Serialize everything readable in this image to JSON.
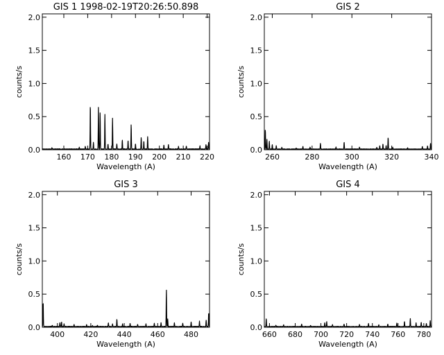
{
  "chart_data": [
    {
      "type": "line",
      "title": "GIS 1 1998-02-19T20:26:50.898",
      "xlabel": "Wavelength (A)",
      "ylabel": "counts/s",
      "xlim": [
        151,
        221
      ],
      "ylim": [
        0,
        2.05
      ],
      "xticks": [
        160,
        170,
        180,
        190,
        200,
        210,
        220
      ],
      "yticks": [
        0.0,
        0.5,
        1.0,
        1.5,
        2.0
      ],
      "ytick_labels": [
        "0.0",
        "0.5",
        "1.0",
        "1.5",
        "2.0"
      ],
      "grid": false,
      "baseline": 0.01,
      "noise": 0.01,
      "x_end": 221,
      "peaks": [
        {
          "x": 155.0,
          "y": 0.02
        },
        {
          "x": 166.5,
          "y": 0.03
        },
        {
          "x": 169.0,
          "y": 0.04
        },
        {
          "x": 171.1,
          "y": 0.68
        },
        {
          "x": 172.4,
          "y": 0.1
        },
        {
          "x": 174.5,
          "y": 0.63
        },
        {
          "x": 175.2,
          "y": 0.55
        },
        {
          "x": 177.2,
          "y": 0.53
        },
        {
          "x": 178.5,
          "y": 0.08
        },
        {
          "x": 180.4,
          "y": 0.47
        },
        {
          "x": 182.2,
          "y": 0.08
        },
        {
          "x": 184.5,
          "y": 0.14
        },
        {
          "x": 186.9,
          "y": 0.13
        },
        {
          "x": 188.2,
          "y": 0.38
        },
        {
          "x": 190.0,
          "y": 0.08
        },
        {
          "x": 192.4,
          "y": 0.18
        },
        {
          "x": 193.5,
          "y": 0.12
        },
        {
          "x": 195.1,
          "y": 0.19
        },
        {
          "x": 201.9,
          "y": 0.06
        },
        {
          "x": 203.8,
          "y": 0.07
        },
        {
          "x": 208.0,
          "y": 0.04
        },
        {
          "x": 211.3,
          "y": 0.05
        },
        {
          "x": 217.0,
          "y": 0.05
        },
        {
          "x": 219.5,
          "y": 0.07
        },
        {
          "x": 220.6,
          "y": 0.1
        }
      ]
    },
    {
      "type": "line",
      "title": "GIS 2",
      "xlabel": "Wavelength (A)",
      "ylabel": "counts/s",
      "xlim": [
        256,
        340
      ],
      "ylim": [
        0,
        2.05
      ],
      "xticks": [
        260,
        280,
        300,
        320,
        340
      ],
      "yticks": [
        0.0,
        0.5,
        1.0,
        1.5,
        2.0
      ],
      "ytick_labels": [
        "0.0",
        "0.5",
        "1.0",
        "1.5",
        "2.0"
      ],
      "grid": false,
      "baseline": 0.01,
      "noise": 0.008,
      "x_end": 340,
      "peaks": [
        {
          "x": 256.5,
          "y": 0.3
        },
        {
          "x": 257.3,
          "y": 0.15
        },
        {
          "x": 258.5,
          "y": 0.12
        },
        {
          "x": 260.0,
          "y": 0.07
        },
        {
          "x": 262.0,
          "y": 0.05
        },
        {
          "x": 264.8,
          "y": 0.03
        },
        {
          "x": 272.0,
          "y": 0.02
        },
        {
          "x": 275.4,
          "y": 0.04
        },
        {
          "x": 279.0,
          "y": 0.03
        },
        {
          "x": 284.2,
          "y": 0.09
        },
        {
          "x": 292.0,
          "y": 0.03
        },
        {
          "x": 296.1,
          "y": 0.11
        },
        {
          "x": 303.8,
          "y": 0.03
        },
        {
          "x": 312.5,
          "y": 0.03
        },
        {
          "x": 314.0,
          "y": 0.05
        },
        {
          "x": 315.6,
          "y": 0.08
        },
        {
          "x": 317.2,
          "y": 0.05
        },
        {
          "x": 318.2,
          "y": 0.18
        },
        {
          "x": 320.5,
          "y": 0.03
        },
        {
          "x": 328.0,
          "y": 0.02
        },
        {
          "x": 335.4,
          "y": 0.04
        },
        {
          "x": 338.0,
          "y": 0.05
        },
        {
          "x": 339.5,
          "y": 0.09
        }
      ]
    },
    {
      "type": "line",
      "title": "GIS 3",
      "xlabel": "Wavelength (A)",
      "ylabel": "counts/s",
      "xlim": [
        391,
        491
      ],
      "ylim": [
        0,
        2.05
      ],
      "xticks": [
        400,
        420,
        440,
        460,
        480
      ],
      "yticks": [
        0.0,
        0.5,
        1.0,
        1.5,
        2.0
      ],
      "ytick_labels": [
        "0.0",
        "0.5",
        "1.0",
        "1.5",
        "2.0"
      ],
      "grid": false,
      "baseline": 0.01,
      "noise": 0.01,
      "x_end": 491,
      "peaks": [
        {
          "x": 391.5,
          "y": 0.38
        },
        {
          "x": 397.0,
          "y": 0.02
        },
        {
          "x": 401.5,
          "y": 0.06
        },
        {
          "x": 402.5,
          "y": 0.07
        },
        {
          "x": 404.0,
          "y": 0.04
        },
        {
          "x": 410.0,
          "y": 0.03
        },
        {
          "x": 417.5,
          "y": 0.03
        },
        {
          "x": 421.0,
          "y": 0.02
        },
        {
          "x": 424.0,
          "y": 0.02
        },
        {
          "x": 430.5,
          "y": 0.06
        },
        {
          "x": 433.0,
          "y": 0.04
        },
        {
          "x": 435.6,
          "y": 0.11
        },
        {
          "x": 439.0,
          "y": 0.04
        },
        {
          "x": 443.5,
          "y": 0.05
        },
        {
          "x": 448.0,
          "y": 0.03
        },
        {
          "x": 453.0,
          "y": 0.04
        },
        {
          "x": 458.0,
          "y": 0.05
        },
        {
          "x": 462.0,
          "y": 0.06
        },
        {
          "x": 465.2,
          "y": 0.56
        },
        {
          "x": 466.0,
          "y": 0.12
        },
        {
          "x": 470.0,
          "y": 0.06
        },
        {
          "x": 475.0,
          "y": 0.05
        },
        {
          "x": 480.0,
          "y": 0.07
        },
        {
          "x": 485.0,
          "y": 0.08
        },
        {
          "x": 489.0,
          "y": 0.1
        },
        {
          "x": 490.5,
          "y": 0.22
        }
      ]
    },
    {
      "type": "line",
      "title": "GIS 4",
      "xlabel": "Wavelength (A)",
      "ylabel": "counts/s",
      "xlim": [
        656,
        786
      ],
      "ylim": [
        0,
        2.05
      ],
      "xticks": [
        660,
        680,
        700,
        720,
        740,
        760,
        780
      ],
      "yticks": [
        0.0,
        0.5,
        1.0,
        1.5,
        2.0
      ],
      "ytick_labels": [
        "0.0",
        "0.5",
        "1.0",
        "1.5",
        "2.0"
      ],
      "grid": false,
      "baseline": 0.01,
      "noise": 0.008,
      "x_end": 786,
      "peaks": [
        {
          "x": 657.5,
          "y": 0.12
        },
        {
          "x": 665.0,
          "y": 0.02
        },
        {
          "x": 671.0,
          "y": 0.03
        },
        {
          "x": 685.0,
          "y": 0.04
        },
        {
          "x": 692.0,
          "y": 0.02
        },
        {
          "x": 703.0,
          "y": 0.06
        },
        {
          "x": 704.5,
          "y": 0.08
        },
        {
          "x": 709.0,
          "y": 0.03
        },
        {
          "x": 718.0,
          "y": 0.04
        },
        {
          "x": 730.0,
          "y": 0.03
        },
        {
          "x": 737.0,
          "y": 0.05
        },
        {
          "x": 745.0,
          "y": 0.03
        },
        {
          "x": 752.0,
          "y": 0.04
        },
        {
          "x": 759.0,
          "y": 0.05
        },
        {
          "x": 765.0,
          "y": 0.08
        },
        {
          "x": 769.5,
          "y": 0.12
        },
        {
          "x": 774.0,
          "y": 0.06
        },
        {
          "x": 778.0,
          "y": 0.07
        },
        {
          "x": 782.0,
          "y": 0.05
        },
        {
          "x": 785.0,
          "y": 0.09
        }
      ]
    }
  ]
}
